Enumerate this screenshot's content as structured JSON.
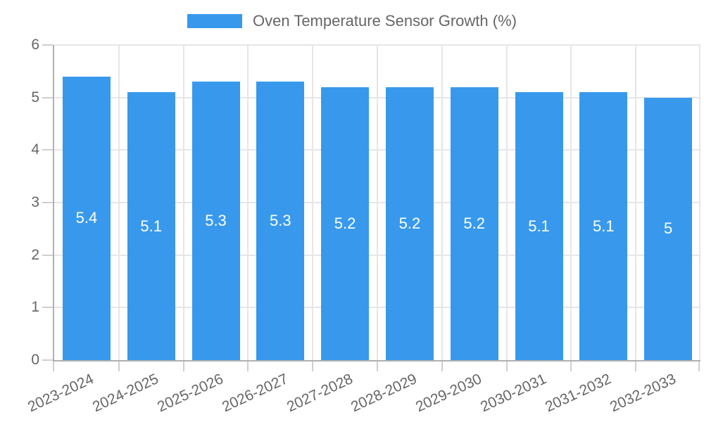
{
  "legend": {
    "label": "Oven Temperature Sensor Growth (%)",
    "swatch_color": "#3899ec"
  },
  "chart_data": {
    "type": "bar",
    "title": "Oven Temperature Sensor Growth (%)",
    "categories": [
      "2023-2024",
      "2024-2025",
      "2025-2026",
      "2026-2027",
      "2027-2028",
      "2028-2029",
      "2029-2030",
      "2030-2031",
      "2031-2032",
      "2032-2033"
    ],
    "values": [
      5.4,
      5.1,
      5.3,
      5.3,
      5.2,
      5.2,
      5.2,
      5.1,
      5.1,
      5
    ],
    "bar_labels": [
      "5.4",
      "5.1",
      "5.3",
      "5.3",
      "5.2",
      "5.2",
      "5.2",
      "5.1",
      "5.1",
      "5"
    ],
    "xlabel": "",
    "ylabel": "",
    "ylim": [
      0,
      6
    ],
    "yticks": [
      "0",
      "1",
      "2",
      "3",
      "4",
      "5",
      "6"
    ],
    "grid": true,
    "legend_position": "top",
    "bar_color": "#3899ec",
    "bar_label_color": "#ffffff"
  },
  "colors": {
    "bar": "#3899ec",
    "grid": "#e6e6e6",
    "axis_border": "#b0b0b0",
    "tick": "#cfcfcf",
    "text": "#666666",
    "background": "#ffffff"
  }
}
